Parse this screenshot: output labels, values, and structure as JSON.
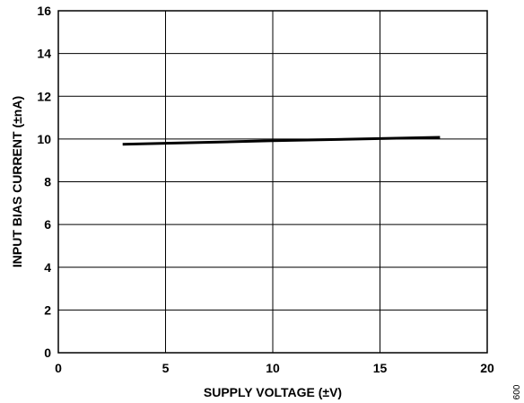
{
  "chart_data": {
    "type": "line",
    "xlabel": "SUPPLY VOLTAGE (±V)",
    "ylabel": "INPUT BIAS CURRENT (±nA)",
    "xlim": [
      0,
      20
    ],
    "ylim": [
      0,
      16
    ],
    "x_ticks": [
      "0",
      "5",
      "10",
      "15",
      "20"
    ],
    "y_ticks": [
      "0",
      "2",
      "4",
      "6",
      "8",
      "10",
      "12",
      "14",
      "16"
    ],
    "grid": true,
    "series": [
      {
        "x": [
          3,
          5,
          10,
          15,
          17.8
        ],
        "y": [
          9.75,
          9.8,
          9.92,
          10.02,
          10.08
        ]
      }
    ],
    "colors": {
      "line": "#000000",
      "grid": "#000000"
    },
    "figure_id": "009"
  }
}
